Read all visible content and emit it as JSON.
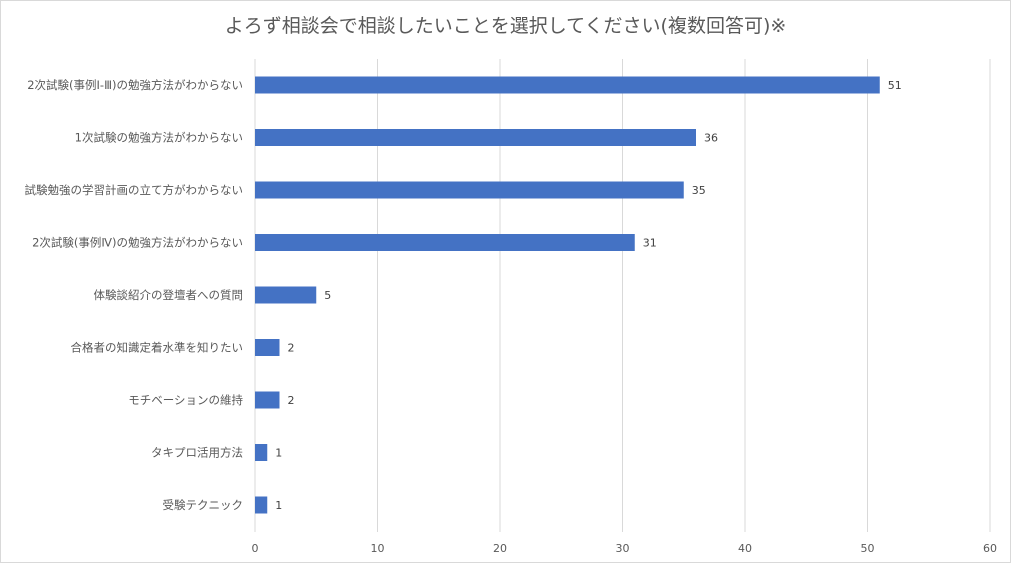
{
  "chart_data": {
    "type": "bar",
    "orientation": "horizontal",
    "title": "よろず相談会で相談したいことを選択してください(複数回答可)※",
    "categories": [
      "2次試験(事例Ⅰ-Ⅲ)の勉強方法がわからない",
      "1次試験の勉強方法がわからない",
      "試験勉強の学習計画の立て方がわからない",
      "2次試験(事例Ⅳ)の勉強方法がわからない",
      "体験談紹介の登壇者への質問",
      "合格者の知識定着水準を知りたい",
      "モチベーションの維持",
      "タキプロ活用方法",
      "受験テクニック"
    ],
    "values": [
      51,
      36,
      35,
      31,
      5,
      2,
      2,
      1,
      1
    ],
    "xlim": [
      0,
      60
    ],
    "xticks": [
      0,
      10,
      20,
      30,
      40,
      50,
      60
    ],
    "xlabel": "",
    "ylabel": "",
    "grid": "vertical",
    "legend": "none",
    "bar_color": "#4472c4",
    "grid_color": "#d9d9d9",
    "text_color": "#595959"
  }
}
